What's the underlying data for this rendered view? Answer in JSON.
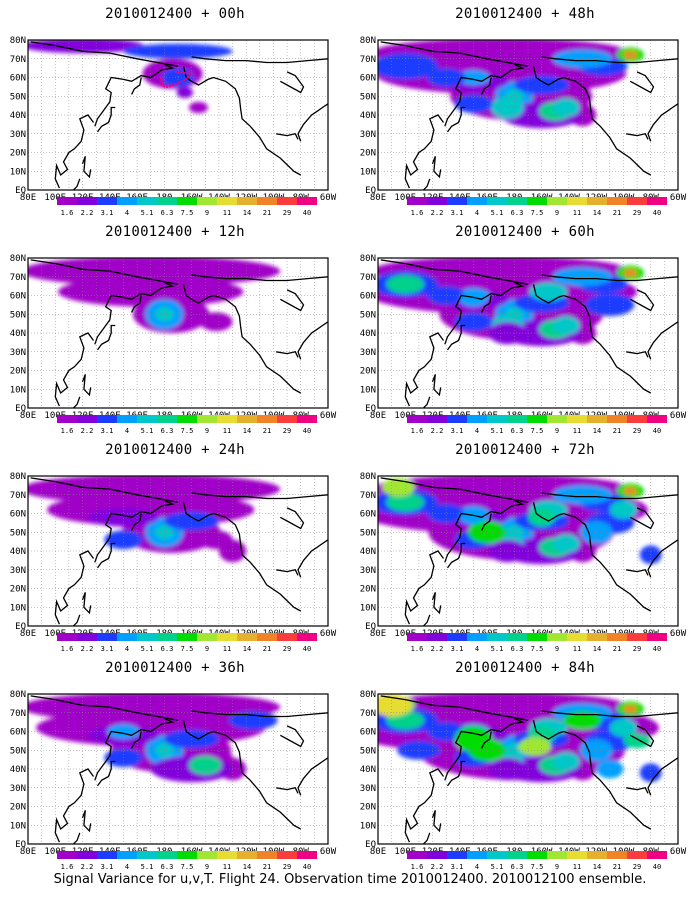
{
  "panels": [
    {
      "title": "2010012400 + 00h",
      "level": 0
    },
    {
      "title": "2010012400 + 48h",
      "level": 4
    },
    {
      "title": "2010012400 + 12h",
      "level": 1
    },
    {
      "title": "2010012400 + 60h",
      "level": 5
    },
    {
      "title": "2010012400 + 24h",
      "level": 2
    },
    {
      "title": "2010012400 + 72h",
      "level": 6
    },
    {
      "title": "2010012400 + 36h",
      "level": 3
    },
    {
      "title": "2010012400 + 84h",
      "level": 7
    }
  ],
  "lat_labels": [
    "80N",
    "70N",
    "60N",
    "50N",
    "40N",
    "30N",
    "20N",
    "10N",
    "EQ"
  ],
  "lon_labels": [
    "80E",
    "100E",
    "120E",
    "140E",
    "160E",
    "180",
    "160W",
    "140W",
    "120W",
    "100W",
    "80W",
    "60W"
  ],
  "colorbar": {
    "labels": [
      "1.6",
      "2.2",
      "3.1",
      "4",
      "5.1",
      "6.3",
      "7.5",
      "9",
      "11",
      "14",
      "21",
      "29",
      "40"
    ],
    "colors": [
      "#a000c8",
      "#8200dc",
      "#1e3cff",
      "#00a0ff",
      "#00c8c8",
      "#00d28c",
      "#00dc00",
      "#a0e632",
      "#e6dc32",
      "#e6af2d",
      "#f08228",
      "#fa3c3c",
      "#f00082"
    ]
  },
  "footer": "Signal Variance for u,v,T. Flight 24. Observation time 2010012400. 2010012100 ensemble."
}
